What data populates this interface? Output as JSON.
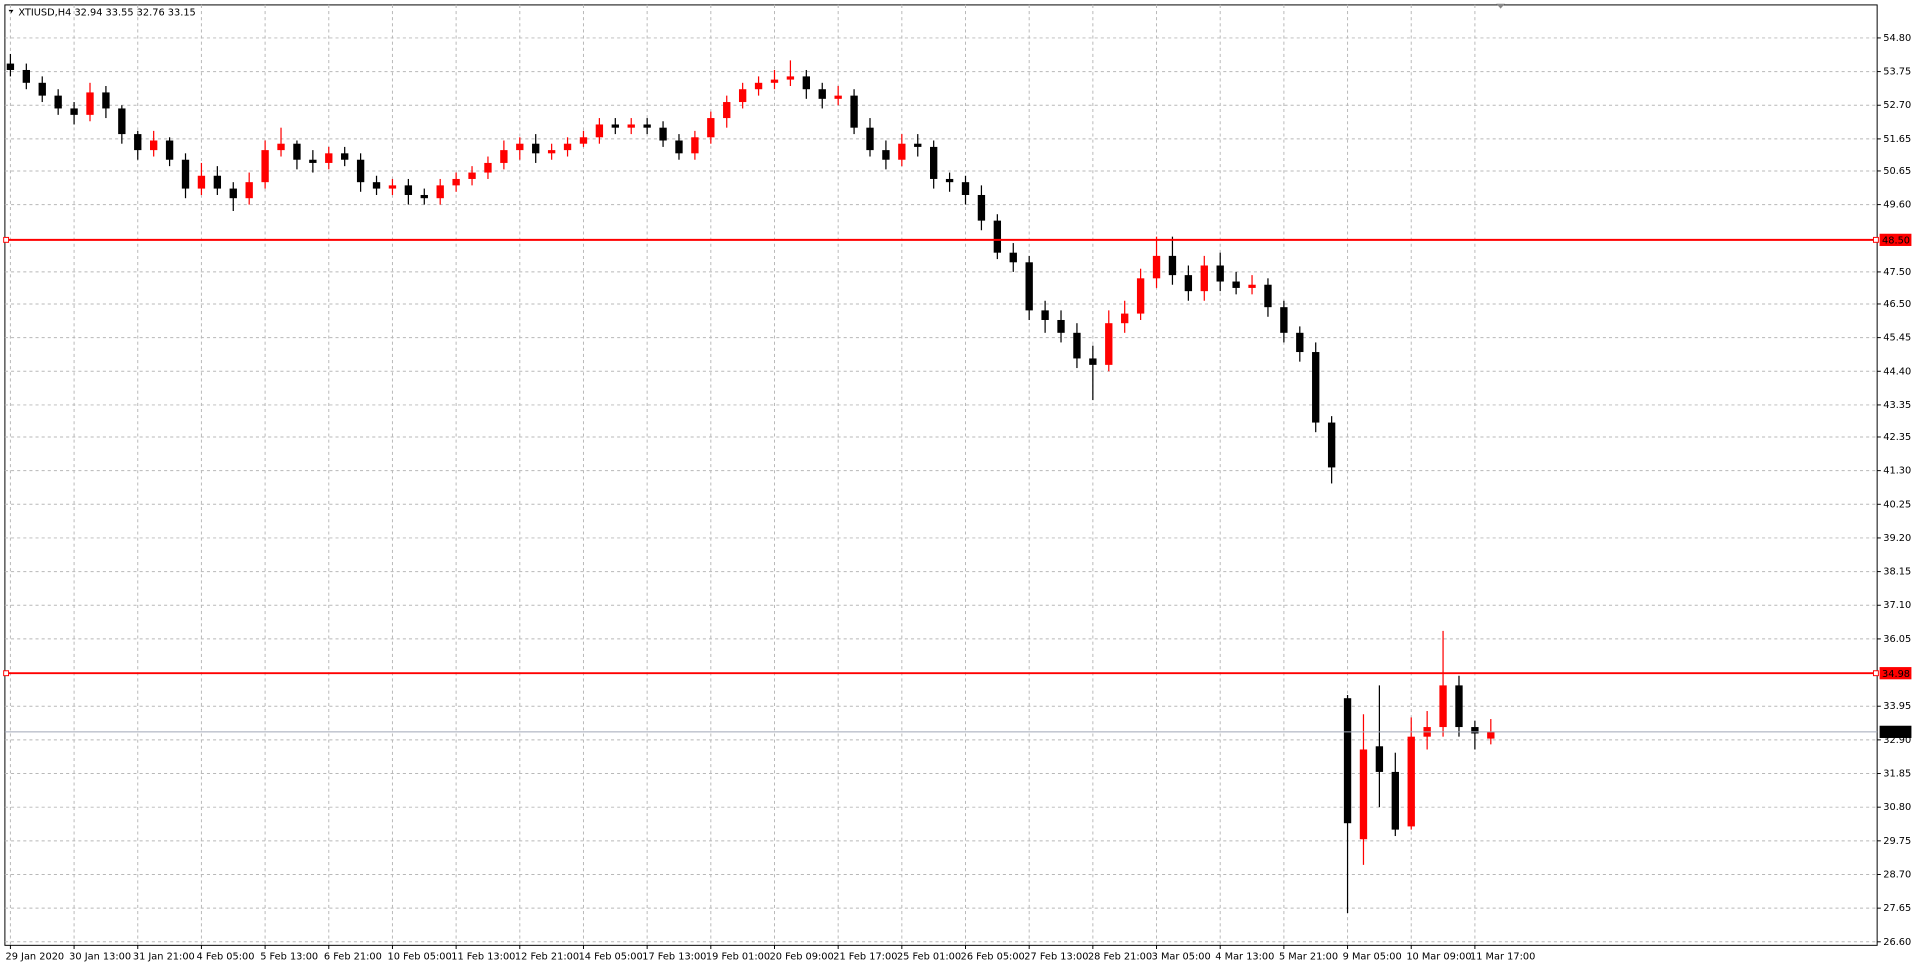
{
  "chart_data": {
    "type": "candlestick",
    "title": "XTIUSD,H4  32.94 33.55 32.76 33.15",
    "bull_color": "#ff0000",
    "bear_color": "#000000",
    "grid": true,
    "categories": [
      "29 Jan 2020",
      null,
      null,
      null,
      "30 Jan 13:00",
      null,
      null,
      null,
      "31 Jan 21:00",
      null,
      null,
      null,
      "4 Feb 05:00",
      null,
      null,
      null,
      "5 Feb 13:00",
      null,
      null,
      null,
      "6 Feb 21:00",
      null,
      null,
      null,
      "10 Feb 05:00",
      null,
      null,
      null,
      "11 Feb 13:00",
      null,
      null,
      null,
      "12 Feb 21:00",
      null,
      null,
      null,
      "14 Feb 05:00",
      null,
      null,
      null,
      "17 Feb 13:00",
      null,
      null,
      null,
      "19 Feb 01:00",
      null,
      null,
      null,
      "20 Feb 09:00",
      null,
      null,
      null,
      "21 Feb 17:00",
      null,
      null,
      null,
      "25 Feb 01:00",
      null,
      null,
      null,
      "26 Feb 05:00",
      null,
      null,
      null,
      "27 Feb 13:00",
      null,
      null,
      null,
      "28 Feb 21:00",
      null,
      null,
      null,
      "3 Mar 05:00",
      null,
      null,
      null,
      "4 Mar 13:00",
      null,
      null,
      null,
      "5 Mar 21:00",
      null,
      null,
      null,
      "9 Mar 05:00",
      null,
      null,
      null,
      "10 Mar 09:00",
      null,
      null,
      null,
      "11 Mar 17:00",
      null
    ],
    "open": [
      54.0,
      53.8,
      53.4,
      53.0,
      52.6,
      52.4,
      53.1,
      52.6,
      51.8,
      51.3,
      51.6,
      51.0,
      50.1,
      50.5,
      50.1,
      49.8,
      50.3,
      51.3,
      51.5,
      51.0,
      50.9,
      51.2,
      51.0,
      50.3,
      50.1,
      50.2,
      49.9,
      49.8,
      50.2,
      50.4,
      50.6,
      50.9,
      51.3,
      51.5,
      51.2,
      51.3,
      51.5,
      51.7,
      52.1,
      52.0,
      52.1,
      52.0,
      51.6,
      51.2,
      51.7,
      52.3,
      52.8,
      53.2,
      53.4,
      53.5,
      53.6,
      53.2,
      52.9,
      53.0,
      52.0,
      51.3,
      51.0,
      51.5,
      51.4,
      50.4,
      50.3,
      49.9,
      49.1,
      48.1,
      47.8,
      46.3,
      46.0,
      45.6,
      44.8,
      44.6,
      45.9,
      46.2,
      47.3,
      48.0,
      47.4,
      46.9,
      47.7,
      47.2,
      47.0,
      47.1,
      46.4,
      45.6,
      45.0,
      42.8,
      34.2,
      29.8,
      32.7,
      31.9,
      30.2,
      33.0,
      33.3,
      34.6,
      33.3,
      32.94
    ],
    "high": [
      54.3,
      54.0,
      53.6,
      53.2,
      52.8,
      53.4,
      53.3,
      52.7,
      51.9,
      51.9,
      51.7,
      51.2,
      50.9,
      50.8,
      50.3,
      50.6,
      51.6,
      52.0,
      51.6,
      51.3,
      51.4,
      51.4,
      51.2,
      50.5,
      50.4,
      50.4,
      50.1,
      50.4,
      50.6,
      50.8,
      51.1,
      51.6,
      51.7,
      51.8,
      51.5,
      51.7,
      51.9,
      52.3,
      52.3,
      52.3,
      52.3,
      52.2,
      51.8,
      51.9,
      52.5,
      53.0,
      53.4,
      53.6,
      53.8,
      54.1,
      53.8,
      53.4,
      53.3,
      53.2,
      52.3,
      51.6,
      51.8,
      51.8,
      51.6,
      50.6,
      50.5,
      50.2,
      49.3,
      48.4,
      48.0,
      46.6,
      46.3,
      45.9,
      45.2,
      46.3,
      46.6,
      47.6,
      48.6,
      48.6,
      47.7,
      48.0,
      48.1,
      47.5,
      47.4,
      47.3,
      46.6,
      45.8,
      45.3,
      43.0,
      34.3,
      33.7,
      34.6,
      32.5,
      33.6,
      33.8,
      36.3,
      34.9,
      33.5,
      33.55
    ],
    "low": [
      53.6,
      53.2,
      52.8,
      52.4,
      52.1,
      52.2,
      52.3,
      51.5,
      51.0,
      51.1,
      50.8,
      49.8,
      49.9,
      49.9,
      49.4,
      49.6,
      50.1,
      51.1,
      50.7,
      50.6,
      50.7,
      50.8,
      50.0,
      49.9,
      49.9,
      49.6,
      49.6,
      49.6,
      50.0,
      50.2,
      50.4,
      50.7,
      51.0,
      50.9,
      51.0,
      51.1,
      51.4,
      51.5,
      51.8,
      51.8,
      51.8,
      51.4,
      51.0,
      51.0,
      51.5,
      52.0,
      52.6,
      53.0,
      53.2,
      53.3,
      52.9,
      52.6,
      52.7,
      51.8,
      51.1,
      50.7,
      50.8,
      51.1,
      50.1,
      50.0,
      49.6,
      48.8,
      47.9,
      47.5,
      46.0,
      45.6,
      45.3,
      44.5,
      43.5,
      44.4,
      45.6,
      46.0,
      47.0,
      47.1,
      46.6,
      46.6,
      46.9,
      46.8,
      46.8,
      46.1,
      45.3,
      44.7,
      42.5,
      40.9,
      27.5,
      29.0,
      30.8,
      29.9,
      30.1,
      32.6,
      33.0,
      33.0,
      32.6,
      32.76
    ],
    "close": [
      53.8,
      53.4,
      53.0,
      52.6,
      52.4,
      53.1,
      52.6,
      51.8,
      51.3,
      51.6,
      51.0,
      50.1,
      50.5,
      50.1,
      49.8,
      50.3,
      51.3,
      51.5,
      51.0,
      50.9,
      51.2,
      51.0,
      50.3,
      50.1,
      50.2,
      49.9,
      49.8,
      50.2,
      50.4,
      50.6,
      50.9,
      51.3,
      51.5,
      51.2,
      51.3,
      51.5,
      51.7,
      52.1,
      52.0,
      52.1,
      52.0,
      51.6,
      51.2,
      51.7,
      52.3,
      52.8,
      53.2,
      53.4,
      53.5,
      53.6,
      53.2,
      52.9,
      53.0,
      52.0,
      51.3,
      51.0,
      51.5,
      51.4,
      50.4,
      50.3,
      49.9,
      49.1,
      48.1,
      47.8,
      46.3,
      46.0,
      45.6,
      44.8,
      44.6,
      45.9,
      46.2,
      47.3,
      48.0,
      47.4,
      46.9,
      47.7,
      47.2,
      47.0,
      47.1,
      46.4,
      45.6,
      45.0,
      42.8,
      41.4,
      30.3,
      32.6,
      31.9,
      30.1,
      33.0,
      33.3,
      34.6,
      33.3,
      33.1,
      33.15
    ],
    "ylim": [
      26.49,
      55.83
    ],
    "yticks": [
      {
        "value": 54.8,
        "label": "54.80"
      },
      {
        "value": 53.75,
        "label": "53.75"
      },
      {
        "value": 52.7,
        "label": "52.70"
      },
      {
        "value": 51.65,
        "label": "51.65"
      },
      {
        "value": 50.65,
        "label": "50.65"
      },
      {
        "value": 49.6,
        "label": "49.60"
      },
      {
        "value": 47.5,
        "label": "47.50"
      },
      {
        "value": 46.5,
        "label": "46.50"
      },
      {
        "value": 45.45,
        "label": "45.45"
      },
      {
        "value": 44.4,
        "label": "44.40"
      },
      {
        "value": 43.35,
        "label": "43.35"
      },
      {
        "value": 42.35,
        "label": "42.35"
      },
      {
        "value": 41.3,
        "label": "41.30"
      },
      {
        "value": 40.25,
        "label": "40.25"
      },
      {
        "value": 39.2,
        "label": "39.20"
      },
      {
        "value": 38.15,
        "label": "38.15"
      },
      {
        "value": 37.1,
        "label": "37.10"
      },
      {
        "value": 36.05,
        "label": "36.05"
      },
      {
        "value": 33.95,
        "label": "33.95"
      },
      {
        "value": 32.9,
        "label": "32.90"
      },
      {
        "value": 31.85,
        "label": "31.85"
      },
      {
        "value": 30.8,
        "label": "30.80"
      },
      {
        "value": 29.75,
        "label": "29.75"
      },
      {
        "value": 28.7,
        "label": "28.70"
      },
      {
        "value": 27.65,
        "label": "27.65"
      },
      {
        "value": 26.6,
        "label": "26.60"
      }
    ],
    "hlines": [
      {
        "value": 48.5,
        "label": "48.50",
        "color": "#ff0000"
      },
      {
        "value": 34.98,
        "label": "34.98",
        "color": "#ff0000"
      },
      {
        "value": 33.15,
        "label": "33.15",
        "color": "#a0a8b8"
      }
    ]
  }
}
